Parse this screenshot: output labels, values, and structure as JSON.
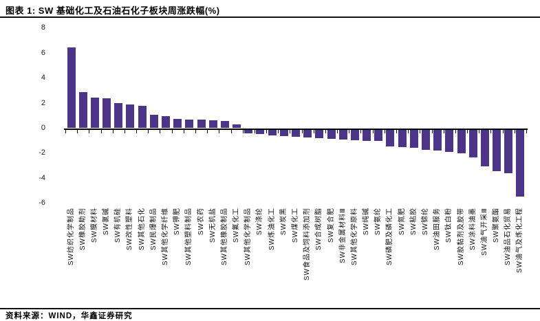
{
  "figure": {
    "title": "图表 1: SW 基础化工及石油石化子板块周涨跌幅(%)",
    "source": "资料来源：WIND，华鑫证券研究"
  },
  "colors": {
    "bar": "#4C3588",
    "axis": "#000000",
    "text": "#111111",
    "rule": "#111111",
    "background": "#FFFFFF"
  },
  "chart_data": {
    "type": "bar",
    "title": "SW基础化工及石油石化子板块周涨跌幅(%)",
    "xlabel": "",
    "ylabel": "",
    "ylim": [
      -6,
      8
    ],
    "yticks": [
      8,
      6,
      4,
      2,
      0,
      -2,
      -4,
      -6
    ],
    "grid": false,
    "legend_position": "none",
    "bar_color": "#4C3588",
    "categories": [
      "SW纺织化学制品",
      "SW橡胶助剂",
      "SW膜材料",
      "SW氯碱",
      "SW有机硅",
      "SW改性塑料",
      "SW其他石化",
      "SW民爆制品",
      "SW其他化学纤维",
      "SW钾肥",
      "SW其他塑料制品",
      "SW农药",
      "SW无机盐",
      "SW其他橡胶制品",
      "SW氟化工",
      "SW其他化学制品",
      "SW涤纶",
      "SW炼油化工",
      "SW炭黑",
      "SW煤化工",
      "SW食品及饲料添加剂",
      "SW合成树脂",
      "SW复合肥",
      "SW非金属材料Ⅲ",
      "SW其他化学原料",
      "SW纯碱",
      "SW氨纶",
      "SW磷肥及磷化工",
      "SW氮肥",
      "SW粘胶",
      "SW锦纶",
      "SW油田服务",
      "SW钛白粉",
      "SW胶黏剂及胶带",
      "SW涂料油墨",
      "SW油气开采Ⅲ",
      "SW聚氨酯",
      "SW油品石化贸易",
      "SW油气及炼化工程"
    ],
    "values": [
      6.45,
      2.88,
      2.44,
      2.38,
      2.03,
      1.92,
      1.81,
      1.07,
      0.94,
      0.72,
      0.7,
      0.68,
      0.64,
      0.57,
      0.3,
      -0.3,
      -0.38,
      -0.48,
      -0.52,
      -0.58,
      -0.62,
      -0.7,
      -0.73,
      -0.77,
      -0.85,
      -0.9,
      -0.92,
      -1.33,
      -1.4,
      -1.45,
      -1.62,
      -1.66,
      -1.78,
      -1.87,
      -2.2,
      -2.92,
      -3.32,
      -3.47,
      -5.35
    ]
  }
}
